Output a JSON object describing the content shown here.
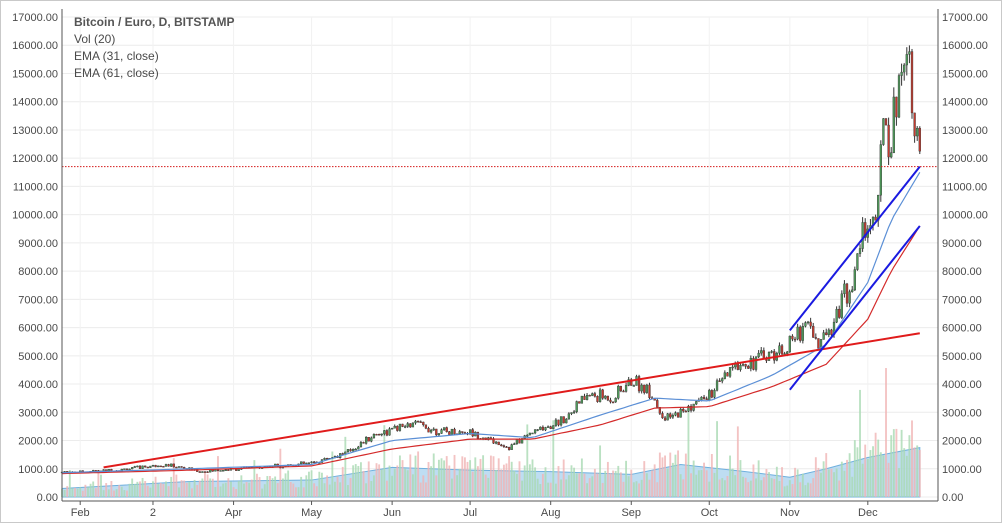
{
  "legend": {
    "title": "Bitcoin / Euro, D, BITSTAMP",
    "volume": "Vol (20)",
    "ema_fast": "EMA (31, close)",
    "ema_slow": "EMA (61, close)"
  },
  "colors": {
    "up_candle": "#4f9a5a",
    "down_candle": "#c23a2e",
    "ema_fast": "#5b8fd6",
    "ema_slow": "#d42a2a",
    "trend_red": "#e01b1b",
    "trend_blue": "#1a1ae0",
    "price_line": "#d41a1a",
    "volume_area": "#a8d2ee",
    "volume_up": "#a9d9b3",
    "volume_down": "#f0b4b4"
  },
  "chart_data": {
    "type": "candlestick",
    "title": "Bitcoin / Euro, D, BITSTAMP",
    "y_ticks": [
      "17000.00",
      "16000.00",
      "15000.00",
      "14000.00",
      "13000.00",
      "12000.00",
      "11000.00",
      "10000.00",
      "9000.00",
      "8000.00",
      "7000.00",
      "6000.00",
      "5000.00",
      "4000.00",
      "3000.00",
      "2000.00",
      "1000.00",
      "0.00"
    ],
    "x_ticks": [
      "Feb",
      "2",
      "Apr",
      "May",
      "Jun",
      "Jul",
      "Aug",
      "Sep",
      "Oct",
      "Nov",
      "Dec"
    ],
    "ylim": [
      0,
      17000
    ],
    "grid": true,
    "current_price": 11700,
    "price_path": [
      [
        "2017-01-25",
        880
      ],
      [
        "2017-02-15",
        950
      ],
      [
        "2017-03-05",
        1150
      ],
      [
        "2017-03-20",
        900
      ],
      [
        "2017-04-10",
        1050
      ],
      [
        "2017-05-01",
        1200
      ],
      [
        "2017-05-15",
        1600
      ],
      [
        "2017-05-25",
        2200
      ],
      [
        "2017-06-10",
        2600
      ],
      [
        "2017-06-20",
        2300
      ],
      [
        "2017-07-01",
        2300
      ],
      [
        "2017-07-16",
        1750
      ],
      [
        "2017-07-25",
        2300
      ],
      [
        "2017-08-05",
        2700
      ],
      [
        "2017-08-15",
        3600
      ],
      [
        "2017-08-25",
        3500
      ],
      [
        "2017-09-01",
        4100
      ],
      [
        "2017-09-08",
        3800
      ],
      [
        "2017-09-14",
        2700
      ],
      [
        "2017-09-22",
        3100
      ],
      [
        "2017-10-01",
        3600
      ],
      [
        "2017-10-12",
        4700
      ],
      [
        "2017-10-20",
        4900
      ],
      [
        "2017-10-31",
        5300
      ],
      [
        "2017-11-08",
        6300
      ],
      [
        "2017-11-12",
        5300
      ],
      [
        "2017-11-20",
        6800
      ],
      [
        "2017-11-26",
        7800
      ],
      [
        "2017-11-29",
        9500
      ],
      [
        "2017-12-05",
        10000
      ],
      [
        "2017-12-07",
        13800
      ],
      [
        "2017-12-09",
        12500
      ],
      [
        "2017-12-12",
        14000
      ],
      [
        "2017-12-15",
        16000
      ],
      [
        "2017-12-17",
        15500
      ],
      [
        "2017-12-19",
        13300
      ],
      [
        "2017-12-21",
        11700
      ]
    ],
    "ema_31": [
      [
        "2017-01-25",
        860
      ],
      [
        "2017-03-15",
        1000
      ],
      [
        "2017-05-01",
        1150
      ],
      [
        "2017-06-01",
        2000
      ],
      [
        "2017-07-01",
        2250
      ],
      [
        "2017-07-25",
        2100
      ],
      [
        "2017-08-20",
        2900
      ],
      [
        "2017-09-10",
        3500
      ],
      [
        "2017-10-01",
        3400
      ],
      [
        "2017-10-25",
        4300
      ],
      [
        "2017-11-15",
        5400
      ],
      [
        "2017-12-01",
        7600
      ],
      [
        "2017-12-10",
        9800
      ],
      [
        "2017-12-21",
        11500
      ]
    ],
    "ema_61": [
      [
        "2017-01-25",
        830
      ],
      [
        "2017-03-15",
        950
      ],
      [
        "2017-05-01",
        1100
      ],
      [
        "2017-06-01",
        1700
      ],
      [
        "2017-07-01",
        2050
      ],
      [
        "2017-07-25",
        2050
      ],
      [
        "2017-08-20",
        2550
      ],
      [
        "2017-09-10",
        3150
      ],
      [
        "2017-10-01",
        3200
      ],
      [
        "2017-10-25",
        3900
      ],
      [
        "2017-11-15",
        4700
      ],
      [
        "2017-12-01",
        6300
      ],
      [
        "2017-12-10",
        8000
      ],
      [
        "2017-12-21",
        9600
      ]
    ],
    "volume_area": [
      [
        "2017-01-25",
        300
      ],
      [
        "2017-03-15",
        550
      ],
      [
        "2017-05-01",
        600
      ],
      [
        "2017-06-01",
        1050
      ],
      [
        "2017-07-01",
        950
      ],
      [
        "2017-08-01",
        900
      ],
      [
        "2017-09-01",
        800
      ],
      [
        "2017-09-20",
        1150
      ],
      [
        "2017-10-15",
        900
      ],
      [
        "2017-11-01",
        700
      ],
      [
        "2017-11-15",
        1000
      ],
      [
        "2017-12-01",
        1400
      ],
      [
        "2017-12-21",
        1750
      ]
    ],
    "trendlines": [
      {
        "color": "red",
        "from": [
          "2017-02-10",
          1050
        ],
        "to": [
          "2017-12-21",
          5800
        ]
      },
      {
        "color": "blue",
        "from": [
          "2017-11-01",
          5900
        ],
        "to": [
          "2017-12-21",
          11700
        ]
      },
      {
        "color": "blue",
        "from": [
          "2017-11-01",
          3800
        ],
        "to": [
          "2017-12-21",
          9600
        ]
      }
    ]
  }
}
